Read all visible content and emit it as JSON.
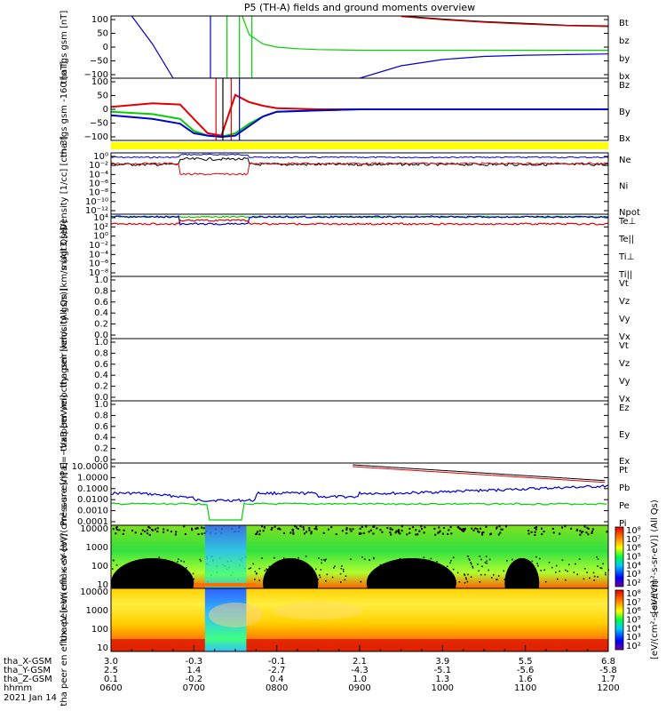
{
  "title": "P5 (TH-A) fields and ground moments overview",
  "colors": {
    "black": "#000000",
    "red": "#e00000",
    "green": "#00d000",
    "blue": "#0000d0",
    "yellow": "#ffff00"
  },
  "chart_data": [
    {
      "type": "line",
      "panel": "fgs_gsm",
      "ylabel": "tha fgs gsm [nT]",
      "yticks": [
        "100",
        "50",
        "0",
        "−50",
        "−100"
      ],
      "ylim": [
        -100,
        100
      ],
      "legend": [
        {
          "name": "Bt",
          "color": "#000000"
        },
        {
          "name": "bz",
          "color": "#e00000"
        },
        {
          "name": "by",
          "color": "#00d000"
        },
        {
          "name": "bx",
          "color": "#0000d0"
        }
      ],
      "series": [
        {
          "name": "Bt",
          "color": "#000000",
          "x": [
            "0930",
            "1000",
            "1030",
            "1100",
            "1130",
            "1200"
          ],
          "y": [
            100,
            90,
            82,
            76,
            70,
            68
          ]
        },
        {
          "name": "bz",
          "color": "#e00000",
          "x": [
            "0930",
            "1000",
            "1030",
            "1100",
            "1130",
            "1200"
          ],
          "y": [
            98,
            88,
            80,
            74,
            69,
            66
          ]
        },
        {
          "name": "by",
          "color": "#00d000",
          "x": [
            "0735",
            "0740",
            "0750",
            "0800",
            "0815",
            "0830",
            "0900",
            "1000",
            "1100",
            "1200"
          ],
          "y": [
            100,
            40,
            10,
            0,
            -5,
            -8,
            -10,
            -10,
            -10,
            -10
          ]
        },
        {
          "name": "bx",
          "color": "#0000d0",
          "x": [
            "0615",
            "0630",
            "0645",
            "0900",
            "0930",
            "1000",
            "1030",
            "1100",
            "1130",
            "1200"
          ],
          "y": [
            100,
            10,
            -100,
            -100,
            -60,
            -40,
            -30,
            -26,
            -24,
            -22
          ]
        }
      ]
    },
    {
      "type": "line",
      "panel": "fgs_gsm_zoom",
      "ylabel": "tha fgs gsm -160 [nT]",
      "yticks": [
        "100",
        "50",
        "0",
        "−50",
        "−100"
      ],
      "ylim": [
        -130,
        130
      ],
      "legend": [
        {
          "name": "Bz",
          "color": "#e00000"
        },
        {
          "name": "By",
          "color": "#00d000"
        },
        {
          "name": "Bx",
          "color": "#0000d0"
        }
      ],
      "series": [
        {
          "name": "Bz",
          "color": "#e00000",
          "x": [
            "0600",
            "0630",
            "0650",
            "0700",
            "0710",
            "0720",
            "0730",
            "0740",
            "0750",
            "0800",
            "0830",
            "0900",
            "1000",
            "1100",
            "1200"
          ],
          "y": [
            10,
            25,
            20,
            -40,
            -100,
            -110,
            60,
            30,
            15,
            5,
            0,
            0,
            0,
            0,
            0
          ]
        },
        {
          "name": "By",
          "color": "#00d000",
          "x": [
            "0600",
            "0630",
            "0650",
            "0700",
            "0710",
            "0720",
            "0730",
            "0740",
            "0750",
            "0800",
            "0830",
            "0900",
            "1000",
            "1100",
            "1200"
          ],
          "y": [
            -10,
            -20,
            -40,
            -90,
            -110,
            -115,
            -100,
            -60,
            -30,
            -10,
            -5,
            0,
            0,
            0,
            0
          ]
        },
        {
          "name": "Bx",
          "color": "#0000d0",
          "x": [
            "0600",
            "0630",
            "0650",
            "0700",
            "0710",
            "0720",
            "0730",
            "0740",
            "0750",
            "0800",
            "0830",
            "0900",
            "1000",
            "1100",
            "1200"
          ],
          "y": [
            -25,
            -40,
            -60,
            -100,
            -110,
            -115,
            -110,
            -70,
            -30,
            -10,
            -5,
            0,
            0,
            0,
            0
          ]
        }
      ]
    },
    {
      "type": "line",
      "panel": "density",
      "ylabel": "Density [1/cc] [cm-3]",
      "yticks": [
        "10⁰",
        "10⁻²",
        "10⁻⁴",
        "10⁻⁶",
        "10⁻⁸",
        "10⁻¹⁰",
        "10⁻¹²"
      ],
      "scale": "log",
      "legend": [
        {
          "name": "Ne",
          "color": "#e00000"
        },
        {
          "name": "Ni",
          "color": "#000000"
        },
        {
          "name": "Npot",
          "color": "#0000d0"
        }
      ]
    },
    {
      "type": "line",
      "panel": "temperature",
      "ylabel": "magt3 [eV]",
      "yticks": [
        "10⁴",
        "10²",
        "10⁰",
        "10⁻²",
        "10⁻⁴",
        "10⁻⁶",
        "10⁻⁸"
      ],
      "scale": "log",
      "legend": [
        {
          "name": "Te⊥",
          "color": "#e00000"
        },
        {
          "name": "Te||",
          "color": "#000000"
        },
        {
          "name": "Ti⊥",
          "color": "#00d000"
        },
        {
          "name": "Ti||",
          "color": "#00d000"
        }
      ]
    },
    {
      "type": "line",
      "panel": "peir_velocity",
      "ylabel": "tha peir velocity gsm [km/s (All Qs)]",
      "yticks": [
        "1.0",
        "0.8",
        "0.6",
        "0.4",
        "0.2",
        "0.0"
      ],
      "legend": [
        {
          "name": "Vt",
          "color": "#000000"
        },
        {
          "name": "Vz",
          "color": "#e00000"
        },
        {
          "name": "Vy",
          "color": "#00d000"
        },
        {
          "name": "Vx",
          "color": "#0000d0"
        }
      ]
    },
    {
      "type": "line",
      "panel": "peer_velocity",
      "ylabel": "tha peer velocity gsm [km/s (All Qs)]",
      "yticks": [
        "1.0",
        "0.8",
        "0.6",
        "0.4",
        "0.2",
        "0.0"
      ],
      "legend": [
        {
          "name": "Vt",
          "color": "#000000"
        },
        {
          "name": "Vz",
          "color": "#e00000"
        },
        {
          "name": "Vy",
          "color": "#00d000"
        },
        {
          "name": "Vx",
          "color": "#0000d0"
        }
      ]
    },
    {
      "type": "line",
      "panel": "efield",
      "ylabel": "E=−VxB [mV/m]",
      "yticks": [
        "1.0",
        "0.8",
        "0.6",
        "0.4",
        "0.2",
        "0.0"
      ],
      "legend": [
        {
          "name": "Ez",
          "color": "#e00000"
        },
        {
          "name": "Ey",
          "color": "#00d000"
        },
        {
          "name": "Ex",
          "color": "#0000d0"
        }
      ]
    },
    {
      "type": "line",
      "panel": "pressure",
      "ylabel": "Pressure [nPa]",
      "yticks": [
        "10.0000",
        "1.0000",
        "0.1000",
        "0.0100",
        "0.0010",
        "0.0001"
      ],
      "scale": "log",
      "legend": [
        {
          "name": "Pt",
          "color": "#000000"
        },
        {
          "name": "Pb",
          "color": "#e00000"
        },
        {
          "name": "Pe",
          "color": "#00d000"
        },
        {
          "name": "Pi",
          "color": "#0000d0"
        }
      ]
    },
    {
      "type": "heatmap",
      "panel": "peir_en_eflux",
      "ylabel": "tha peir en eflux eV [eV/(cm²-s-sr-eV)]",
      "yticks": [
        "10000",
        "1000",
        "100",
        "10"
      ],
      "colorbar_ticks": [
        "10⁸",
        "10⁷",
        "10⁶",
        "10⁵",
        "10⁴",
        "10³",
        "10²"
      ],
      "colorbar_label": "[eV/(cm²-s-sr-eV)] (All Qs)"
    },
    {
      "type": "heatmap",
      "panel": "peer_en_eflux",
      "ylabel": "tha peer en eflux eV [eV/(cm²-s-sr-eV)]",
      "yticks": [
        "10000",
        "1000",
        "100",
        "10"
      ],
      "colorbar_ticks": [
        "10⁸",
        "10⁷",
        "10⁶",
        "10⁵",
        "10⁴",
        "10³",
        "10²"
      ],
      "colorbar_label": "[eV/(cm²-s-sr-eV)]"
    }
  ],
  "xaxis": {
    "rows": [
      {
        "label": "tha_X-GSM",
        "values": [
          "3.0",
          "-0.3",
          "-0.1",
          "2.1",
          "3.9",
          "5.5",
          "6.8"
        ]
      },
      {
        "label": "tha_Y-GSM",
        "values": [
          "2.5",
          "1.4",
          "-2.7",
          "-4.3",
          "-5.1",
          "-5.6",
          "-5.8"
        ]
      },
      {
        "label": "tha_Z-GSM",
        "values": [
          "0.1",
          "-0.2",
          "0.4",
          "1.0",
          "1.3",
          "1.6",
          "1.7"
        ]
      },
      {
        "label": "hhmm",
        "values": [
          "0600",
          "0700",
          "0800",
          "0900",
          "1000",
          "1100",
          "1200"
        ]
      }
    ],
    "date": "2021 Jan 14"
  }
}
